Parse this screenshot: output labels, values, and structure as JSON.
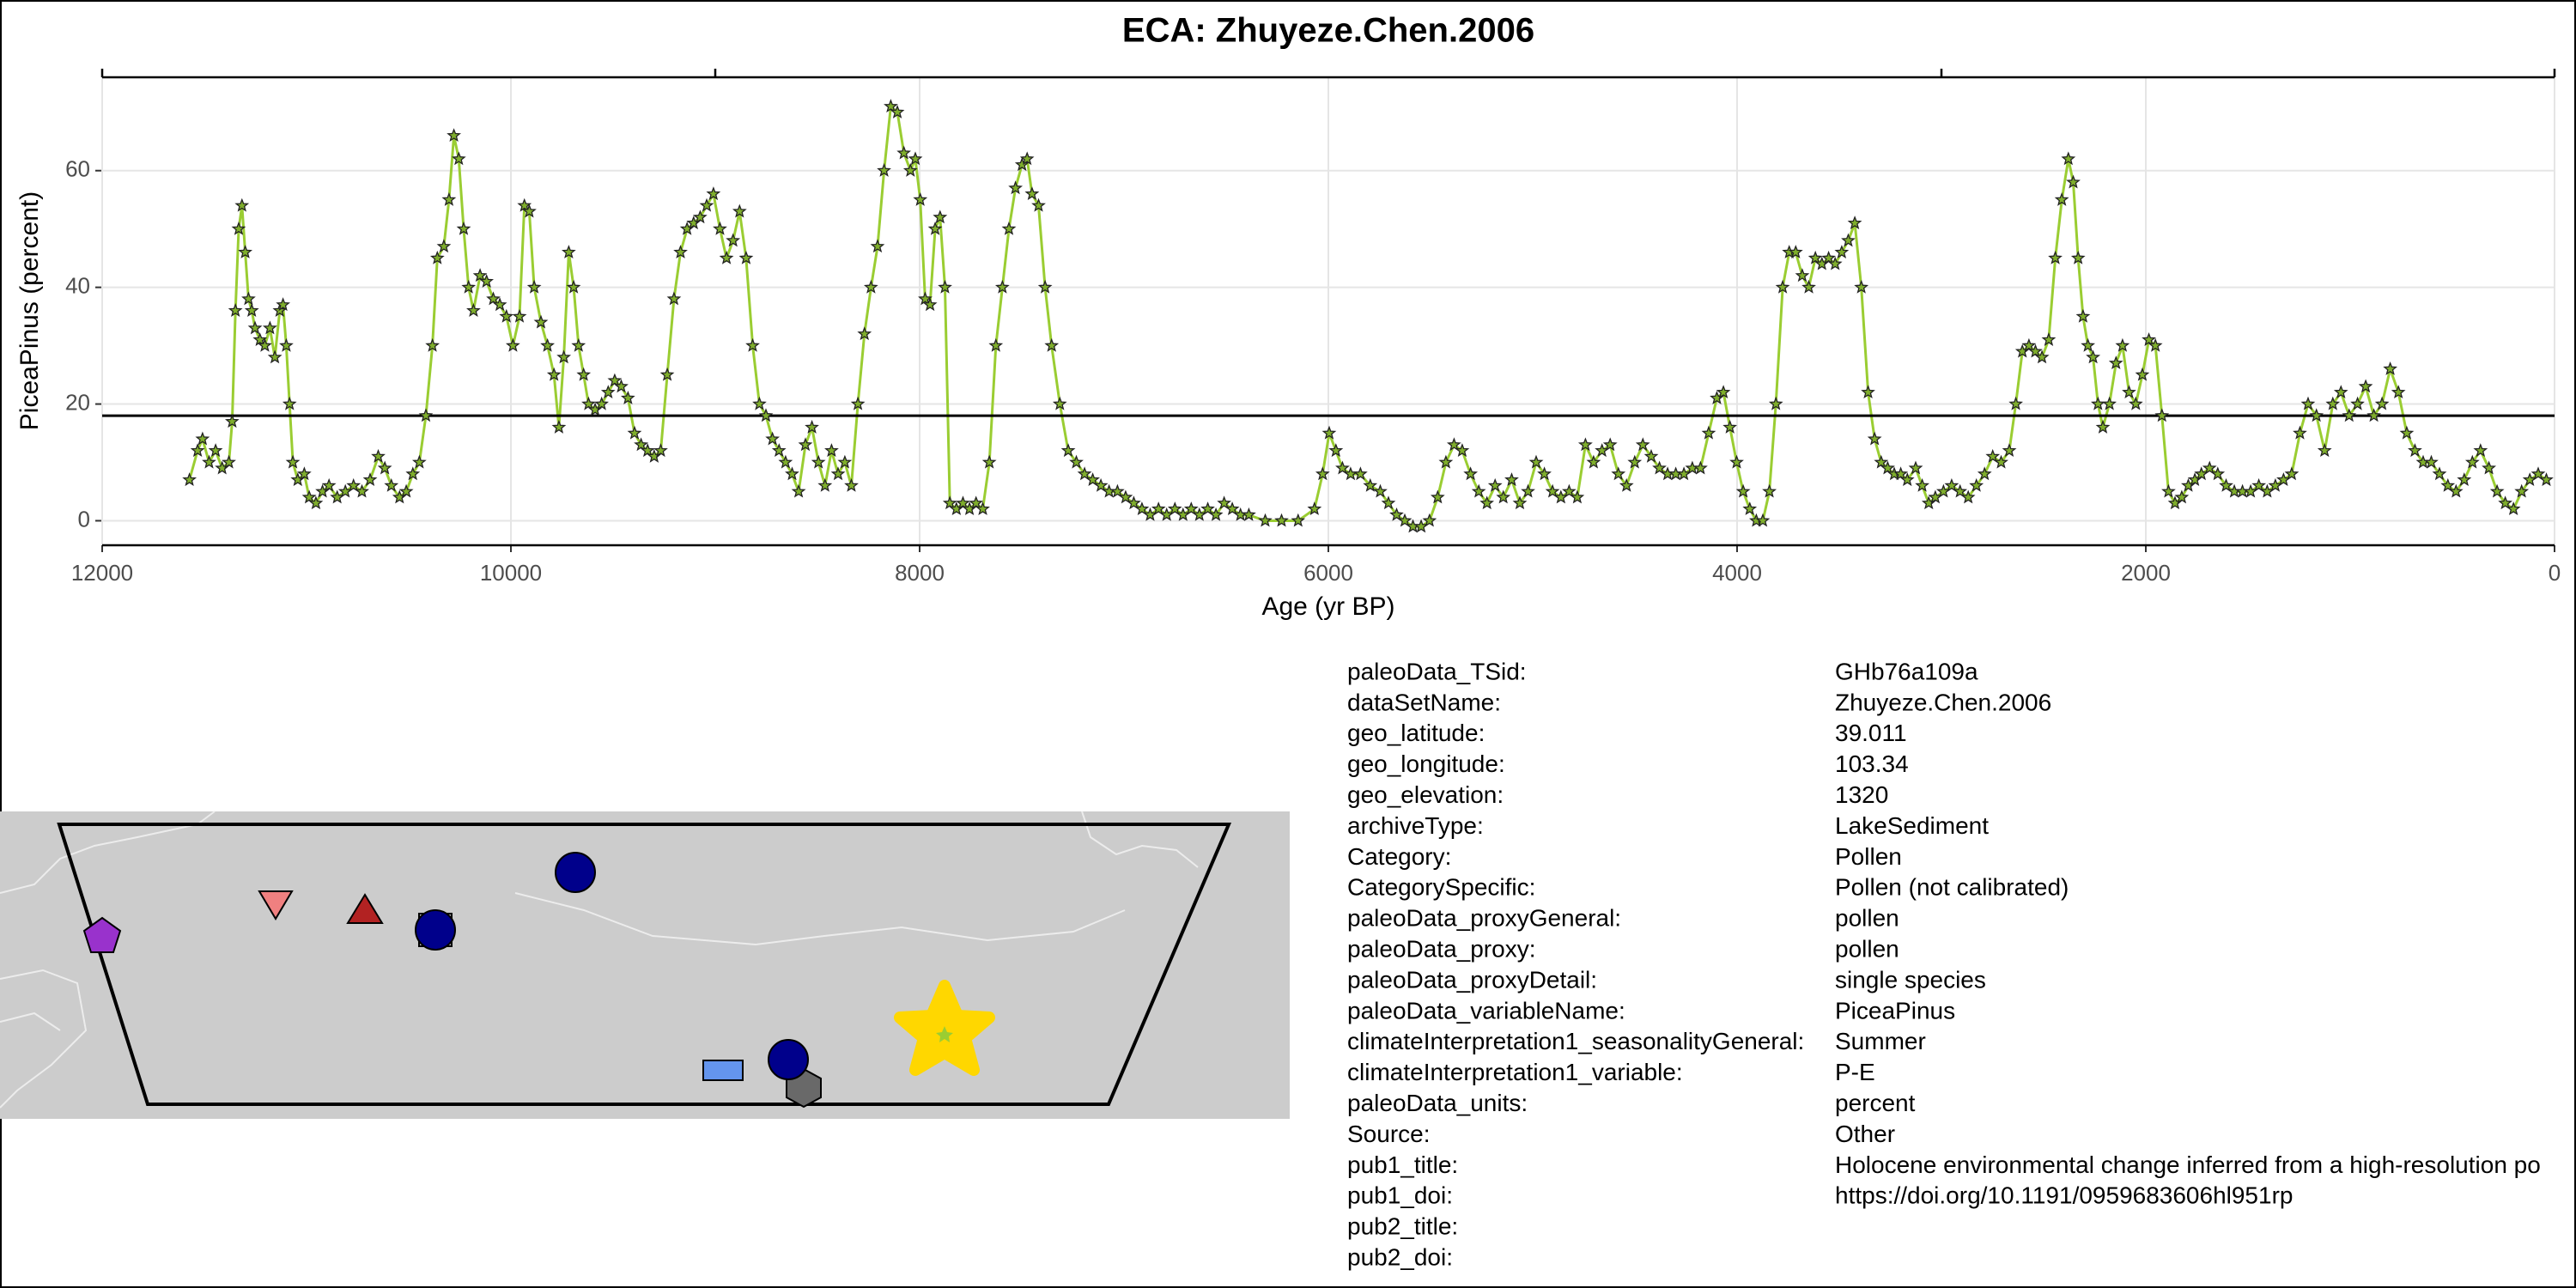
{
  "chart_data": {
    "type": "line",
    "title": "ECA: Zhuyeze.Chen.2006",
    "xlabel": "Age (yr BP)",
    "ylabel": "PiceaPinus (percent)",
    "x": [
      11573,
      11533,
      11509,
      11477,
      11445,
      11413,
      11380,
      11364,
      11348,
      11332,
      11316,
      11300,
      11284,
      11268,
      11252,
      11228,
      11204,
      11179,
      11155,
      11131,
      11115,
      11099,
      11083,
      11067,
      11043,
      11011,
      10987,
      10954,
      10922,
      10890,
      10850,
      10810,
      10770,
      10729,
      10689,
      10649,
      10617,
      10585,
      10545,
      10512,
      10480,
      10448,
      10416,
      10384,
      10360,
      10328,
      10303,
      10279,
      10255,
      10231,
      10207,
      10183,
      10151,
      10119,
      10086,
      10054,
      10022,
      9990,
      9958,
      9934,
      9910,
      9886,
      9853,
      9821,
      9789,
      9765,
      9741,
      9717,
      9693,
      9669,
      9644,
      9620,
      9588,
      9556,
      9524,
      9492,
      9460,
      9427,
      9395,
      9363,
      9331,
      9299,
      9267,
      9235,
      9202,
      9170,
      9138,
      9106,
      9074,
      9042,
      9009,
      8977,
      8945,
      8913,
      8881,
      8849,
      8817,
      8784,
      8752,
      8720,
      8688,
      8656,
      8624,
      8592,
      8559,
      8527,
      8495,
      8463,
      8431,
      8399,
      8366,
      8334,
      8302,
      8270,
      8238,
      8206,
      8174,
      8141,
      8109,
      8077,
      8045,
      8021,
      7997,
      7973,
      7949,
      7924,
      7900,
      7876,
      7852,
      7820,
      7788,
      7756,
      7724,
      7691,
      7659,
      7627,
      7595,
      7563,
      7531,
      7499,
      7474,
      7450,
      7418,
      7386,
      7354,
      7314,
      7273,
      7233,
      7193,
      7153,
      7113,
      7073,
      7032,
      6992,
      6952,
      6912,
      6872,
      6831,
      6791,
      6751,
      6711,
      6671,
      6631,
      6590,
      6550,
      6510,
      6470,
      6430,
      6389,
      6309,
      6229,
      6148,
      6068,
      6028,
      5996,
      5963,
      5931,
      5891,
      5843,
      5795,
      5746,
      5706,
      5666,
      5626,
      5586,
      5546,
      5505,
      5465,
      5425,
      5385,
      5345,
      5304,
      5264,
      5224,
      5184,
      5144,
      5103,
      5063,
      5023,
      4983,
      4943,
      4903,
      4862,
      4822,
      4782,
      4742,
      4702,
      4661,
      4621,
      4581,
      4541,
      4501,
      4461,
      4420,
      4380,
      4340,
      4300,
      4260,
      4219,
      4179,
      4139,
      4099,
      4067,
      4035,
      4002,
      3970,
      3938,
      3906,
      3874,
      3842,
      3810,
      3777,
      3745,
      3713,
      3681,
      3649,
      3617,
      3585,
      3552,
      3520,
      3488,
      3456,
      3424,
      3392,
      3359,
      3327,
      3295,
      3263,
      3231,
      3199,
      3167,
      3126,
      3094,
      3062,
      3030,
      2990,
      2950,
      2909,
      2869,
      2829,
      2789,
      2749,
      2708,
      2668,
      2636,
      2604,
      2572,
      2540,
      2508,
      2475,
      2443,
      2411,
      2379,
      2355,
      2331,
      2307,
      2283,
      2258,
      2234,
      2210,
      2178,
      2146,
      2114,
      2082,
      2049,
      2017,
      1985,
      1953,
      1921,
      1889,
      1857,
      1824,
      1792,
      1760,
      1728,
      1688,
      1648,
      1607,
      1567,
      1527,
      1487,
      1447,
      1406,
      1366,
      1326,
      1286,
      1246,
      1206,
      1165,
      1125,
      1085,
      1045,
      1005,
      964,
      924,
      884,
      844,
      804,
      764,
      723,
      683,
      643,
      603,
      563,
      522,
      482,
      442,
      402,
      362,
      321,
      281,
      241,
      201,
      161,
      121,
      80,
      40
    ],
    "series": [
      {
        "color": "#9acd32",
        "marker_color": "#7fae2c",
        "values": [
          7,
          12,
          14,
          10,
          12,
          9,
          10,
          17,
          36,
          50,
          54,
          46,
          38,
          36,
          33,
          31,
          30,
          33,
          28,
          36,
          37,
          30,
          20,
          10,
          7,
          8,
          4,
          3,
          5,
          6,
          4,
          5,
          6,
          5,
          7,
          11,
          9,
          6,
          4,
          5,
          8,
          10,
          18,
          30,
          45,
          47,
          55,
          66,
          62,
          50,
          40,
          36,
          42,
          41,
          38,
          37,
          35,
          30,
          35,
          54,
          53,
          40,
          34,
          30,
          25,
          16,
          28,
          46,
          40,
          30,
          25,
          20,
          19,
          20,
          22,
          24,
          23,
          21,
          15,
          13,
          12,
          11,
          12,
          25,
          38,
          46,
          50,
          51,
          52,
          54,
          56,
          50,
          45,
          48,
          53,
          45,
          30,
          20,
          18,
          14,
          12,
          10,
          8,
          5,
          13,
          16,
          10,
          6,
          12,
          8,
          10,
          6,
          20,
          32,
          40,
          47,
          60,
          71,
          70,
          63,
          60,
          62,
          55,
          38,
          37,
          50,
          52,
          40,
          3,
          2,
          3,
          2,
          3,
          2,
          10,
          30,
          40,
          50,
          57,
          61,
          62,
          56,
          54,
          40,
          30,
          20,
          12,
          10,
          8,
          7,
          6,
          5,
          5,
          4,
          3,
          2,
          1,
          2,
          1,
          2,
          1,
          2,
          1,
          2,
          1,
          3,
          2,
          1,
          1,
          0,
          0,
          0,
          2,
          8,
          15,
          12,
          9,
          8,
          8,
          6,
          5,
          3,
          1,
          0,
          -1,
          -1,
          0,
          4,
          10,
          13,
          12,
          8,
          5,
          3,
          6,
          4,
          7,
          3,
          5,
          10,
          8,
          5,
          4,
          5,
          4,
          13,
          10,
          12,
          13,
          8,
          6,
          10,
          13,
          11,
          9,
          8,
          8,
          8,
          9,
          9,
          15,
          21,
          22,
          16,
          10,
          5,
          2,
          0,
          0,
          5,
          20,
          40,
          46,
          46,
          42,
          40,
          45,
          44,
          45,
          44,
          46,
          48,
          51,
          40,
          22,
          14,
          10,
          9,
          8,
          8,
          7,
          9,
          6,
          3,
          4,
          5,
          6,
          5,
          4,
          6,
          8,
          11,
          10,
          12,
          20,
          29,
          30,
          29,
          28,
          31,
          45,
          55,
          62,
          58,
          45,
          35,
          30,
          28,
          20,
          16,
          20,
          27,
          30,
          22,
          20,
          25,
          31,
          30,
          18,
          5,
          3,
          4,
          6,
          7,
          8,
          9,
          8,
          6,
          5,
          5,
          5,
          6,
          5,
          6,
          7,
          8,
          15,
          20,
          18,
          12,
          20,
          22,
          18,
          20,
          23,
          18,
          20,
          26,
          22,
          15,
          12,
          10,
          10,
          8,
          6,
          5,
          7,
          10,
          12,
          9,
          5,
          3,
          2,
          5,
          7,
          8,
          7
        ]
      }
    ],
    "hline": 18,
    "xlim": [
      12000,
      0
    ],
    "xticks": [
      12000,
      10000,
      8000,
      6000,
      4000,
      2000,
      0
    ],
    "x2ticks": [
      12000,
      9000,
      3000,
      0
    ],
    "ylim": [
      -4.2,
      76
    ],
    "yticks": [
      0,
      20,
      40,
      60
    ],
    "grid": true
  },
  "metadata": {
    "rows": [
      {
        "label": "paleoData_TSid:",
        "value": "GHb76a109a"
      },
      {
        "label": "dataSetName:",
        "value": "Zhuyeze.Chen.2006"
      },
      {
        "label": "geo_latitude:",
        "value": 39.011
      },
      {
        "label": "geo_longitude:",
        "value": 103.34
      },
      {
        "label": "geo_elevation:",
        "value": 1320
      },
      {
        "label": "archiveType:",
        "value": "LakeSediment"
      },
      {
        "label": "Category:",
        "value": "Pollen"
      },
      {
        "label": "CategorySpecific:",
        "value": "Pollen (not calibrated)"
      },
      {
        "label": "paleoData_proxyGeneral:",
        "value": "pollen"
      },
      {
        "label": "paleoData_proxy:",
        "value": "pollen"
      },
      {
        "label": "paleoData_proxyDetail:",
        "value": "single species"
      },
      {
        "label": "paleoData_variableName:",
        "value": "PiceaPinus"
      },
      {
        "label": "climateInterpretation1_seasonalityGeneral:",
        "value": "Summer"
      },
      {
        "label": "climateInterpretation1_variable:",
        "value": "P-E"
      },
      {
        "label": "paleoData_units:",
        "value": "percent"
      },
      {
        "label": "Source:",
        "value": "Other"
      },
      {
        "label": "pub1_title:",
        "value": "Holocene environmental change inferred from a high-resolution po"
      },
      {
        "label": "pub1_doi:",
        "value": "https://doi.org/10.1191/0959683606hl951rp"
      },
      {
        "label": "pub2_title:"
      },
      {
        "label": "pub2_doi:"
      }
    ]
  }
}
